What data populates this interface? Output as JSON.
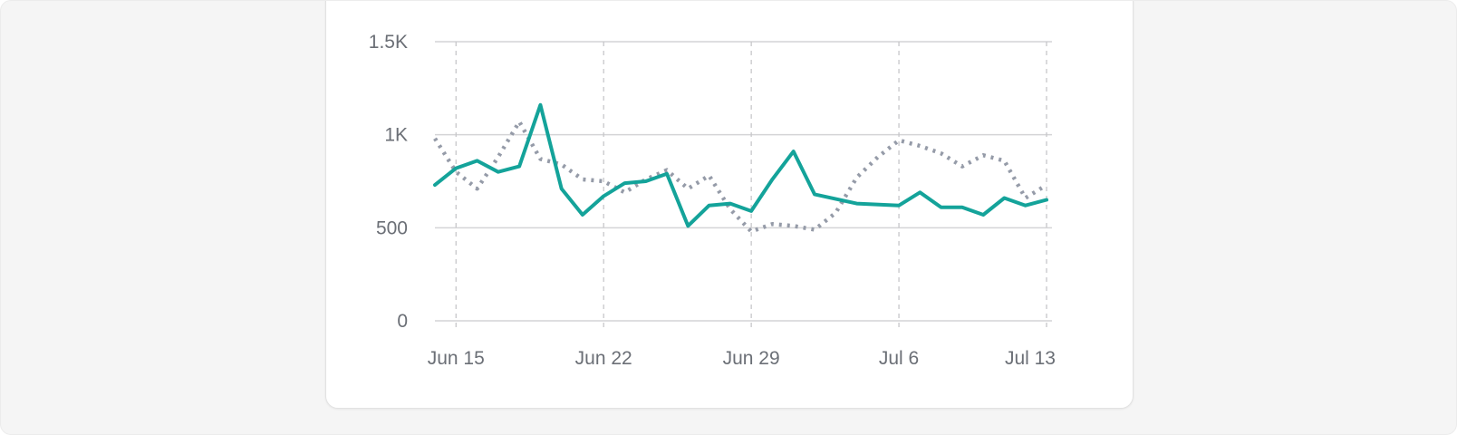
{
  "chart_data": {
    "type": "line",
    "title": "",
    "xlabel": "",
    "ylabel": "",
    "x_tick_labels": [
      "Jun 15",
      "Jun 22",
      "Jun 29",
      "Jul 6",
      "Jul 13"
    ],
    "y_tick_labels": [
      "0",
      "500",
      "1K",
      "1.5K"
    ],
    "y_ticks": [
      0,
      500,
      1000,
      1500
    ],
    "ylim": [
      0,
      1500
    ],
    "xlim": [
      "2024-06-14",
      "2024-07-13"
    ],
    "grid": {
      "horizontal": true,
      "vertical_dashed": true
    },
    "legend": "none",
    "series": [
      {
        "style": "solid",
        "color": "#14a39a",
        "points": [
          [
            "2024-06-14",
            730
          ],
          [
            "2024-06-15",
            820
          ],
          [
            "2024-06-16",
            860
          ],
          [
            "2024-06-17",
            800
          ],
          [
            "2024-06-18",
            830
          ],
          [
            "2024-06-19",
            1160
          ],
          [
            "2024-06-20",
            710
          ],
          [
            "2024-06-21",
            570
          ],
          [
            "2024-06-22",
            670
          ],
          [
            "2024-06-23",
            740
          ],
          [
            "2024-06-24",
            750
          ],
          [
            "2024-06-25",
            790
          ],
          [
            "2024-06-26",
            510
          ],
          [
            "2024-06-27",
            620
          ],
          [
            "2024-06-28",
            630
          ],
          [
            "2024-06-29",
            590
          ],
          [
            "2024-06-30",
            760
          ],
          [
            "2024-07-01",
            910
          ],
          [
            "2024-07-02",
            680
          ],
          [
            "2024-07-04",
            630
          ],
          [
            "2024-07-06",
            620
          ],
          [
            "2024-07-07",
            690
          ],
          [
            "2024-07-08",
            610
          ],
          [
            "2024-07-09",
            610
          ],
          [
            "2024-07-10",
            570
          ],
          [
            "2024-07-11",
            660
          ],
          [
            "2024-07-12",
            620
          ],
          [
            "2024-07-13",
            650
          ]
        ]
      },
      {
        "style": "dotted",
        "color": "#959ba8",
        "points": [
          [
            "2024-06-14",
            980
          ],
          [
            "2024-06-15",
            800
          ],
          [
            "2024-06-16",
            710
          ],
          [
            "2024-06-17",
            880
          ],
          [
            "2024-06-18",
            1070
          ],
          [
            "2024-06-19",
            870
          ],
          [
            "2024-06-20",
            840
          ],
          [
            "2024-06-21",
            760
          ],
          [
            "2024-06-22",
            750
          ],
          [
            "2024-06-23",
            690
          ],
          [
            "2024-06-24",
            760
          ],
          [
            "2024-06-25",
            810
          ],
          [
            "2024-06-26",
            710
          ],
          [
            "2024-06-27",
            780
          ],
          [
            "2024-06-28",
            600
          ],
          [
            "2024-06-29",
            480
          ],
          [
            "2024-06-30",
            520
          ],
          [
            "2024-07-01",
            510
          ],
          [
            "2024-07-02",
            490
          ],
          [
            "2024-07-03",
            580
          ],
          [
            "2024-07-04",
            770
          ],
          [
            "2024-07-05",
            880
          ],
          [
            "2024-07-06",
            970
          ],
          [
            "2024-07-07",
            940
          ],
          [
            "2024-07-08",
            900
          ],
          [
            "2024-07-09",
            830
          ],
          [
            "2024-07-10",
            890
          ],
          [
            "2024-07-11",
            860
          ],
          [
            "2024-07-12",
            660
          ],
          [
            "2024-07-13",
            730
          ]
        ]
      }
    ],
    "colors": {
      "grid": "#d4d4d6",
      "vgrid": "#c7c7ca",
      "axis_text": "#6b6f76"
    }
  }
}
